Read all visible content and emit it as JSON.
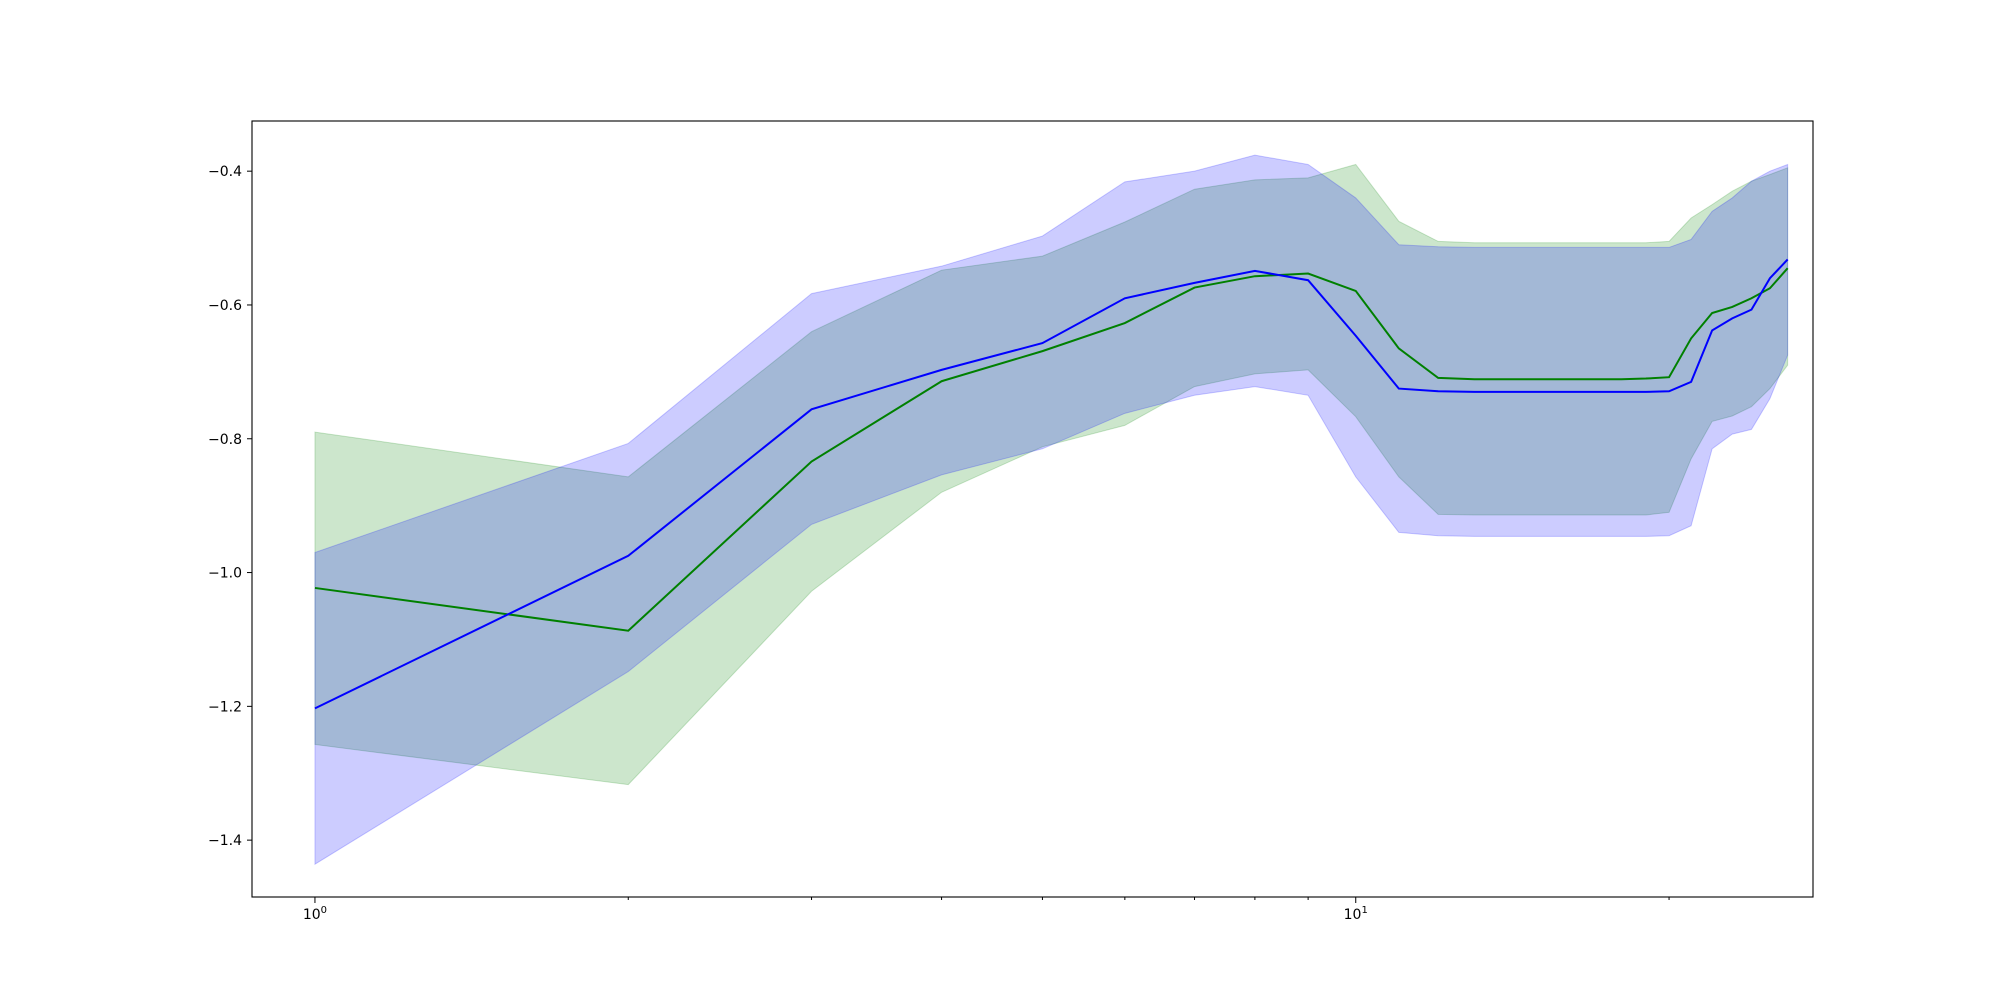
{
  "chart_data": {
    "type": "line",
    "title": "",
    "xlabel": "",
    "ylabel": "",
    "xscale": "log",
    "xlim": [
      0.87,
      27.5
    ],
    "ylim": [
      -1.485,
      -0.325
    ],
    "grid": false,
    "legend": "none",
    "x_ticks": [
      {
        "value": 1,
        "base": "10",
        "exp": "0"
      },
      {
        "value": 10,
        "base": "10",
        "exp": "1"
      }
    ],
    "y_ticks": [
      {
        "value": -0.4,
        "label": "−0.4"
      },
      {
        "value": -0.6,
        "label": "−0.6"
      },
      {
        "value": -0.8,
        "label": "−0.8"
      },
      {
        "value": -1.0,
        "label": "−1.0"
      },
      {
        "value": -1.2,
        "label": "−1.2"
      },
      {
        "value": -1.4,
        "label": "−1.4"
      }
    ],
    "x": [
      1,
      2,
      3,
      4,
      5,
      6,
      7,
      8,
      9,
      10,
      11,
      12,
      13,
      18,
      19,
      20,
      21,
      22,
      23,
      24,
      25,
      26
    ],
    "series": [
      {
        "color": "#008000",
        "band_color": "#008000",
        "band_opacity": 0.2,
        "mean": [
          -1.023,
          -1.087,
          -0.834,
          -0.714,
          -0.669,
          -0.627,
          -0.574,
          -0.557,
          -0.553,
          -0.579,
          -0.665,
          -0.709,
          -0.711,
          -0.711,
          -0.71,
          -0.708,
          -0.65,
          -0.612,
          -0.603,
          -0.59,
          -0.575,
          -0.545
        ],
        "upper": [
          -0.79,
          -0.857,
          -0.64,
          -0.548,
          -0.527,
          -0.476,
          -0.427,
          -0.413,
          -0.41,
          -0.39,
          -0.475,
          -0.505,
          -0.507,
          -0.507,
          -0.507,
          -0.505,
          -0.47,
          -0.45,
          -0.43,
          -0.415,
          -0.405,
          -0.395
        ],
        "lower": [
          -1.257,
          -1.317,
          -1.028,
          -0.88,
          -0.812,
          -0.78,
          -0.722,
          -0.703,
          -0.697,
          -0.767,
          -0.857,
          -0.913,
          -0.914,
          -0.914,
          -0.914,
          -0.91,
          -0.83,
          -0.774,
          -0.766,
          -0.752,
          -0.725,
          -0.69
        ]
      },
      {
        "color": "#0000ff",
        "band_color": "#0000ff",
        "band_opacity": 0.2,
        "mean": [
          -1.203,
          -0.975,
          -0.756,
          -0.697,
          -0.657,
          -0.59,
          -0.567,
          -0.549,
          -0.563,
          -0.646,
          -0.725,
          -0.729,
          -0.73,
          -0.73,
          -0.73,
          -0.729,
          -0.715,
          -0.638,
          -0.62,
          -0.607,
          -0.56,
          -0.532
        ],
        "upper": [
          -0.97,
          -0.807,
          -0.583,
          -0.542,
          -0.497,
          -0.416,
          -0.4,
          -0.376,
          -0.39,
          -0.44,
          -0.51,
          -0.513,
          -0.514,
          -0.514,
          -0.514,
          -0.514,
          -0.502,
          -0.46,
          -0.44,
          -0.415,
          -0.4,
          -0.39
        ],
        "lower": [
          -1.436,
          -1.148,
          -0.928,
          -0.854,
          -0.815,
          -0.762,
          -0.735,
          -0.722,
          -0.735,
          -0.857,
          -0.94,
          -0.945,
          -0.946,
          -0.946,
          -0.946,
          -0.945,
          -0.93,
          -0.815,
          -0.793,
          -0.786,
          -0.74,
          -0.675
        ]
      }
    ]
  }
}
